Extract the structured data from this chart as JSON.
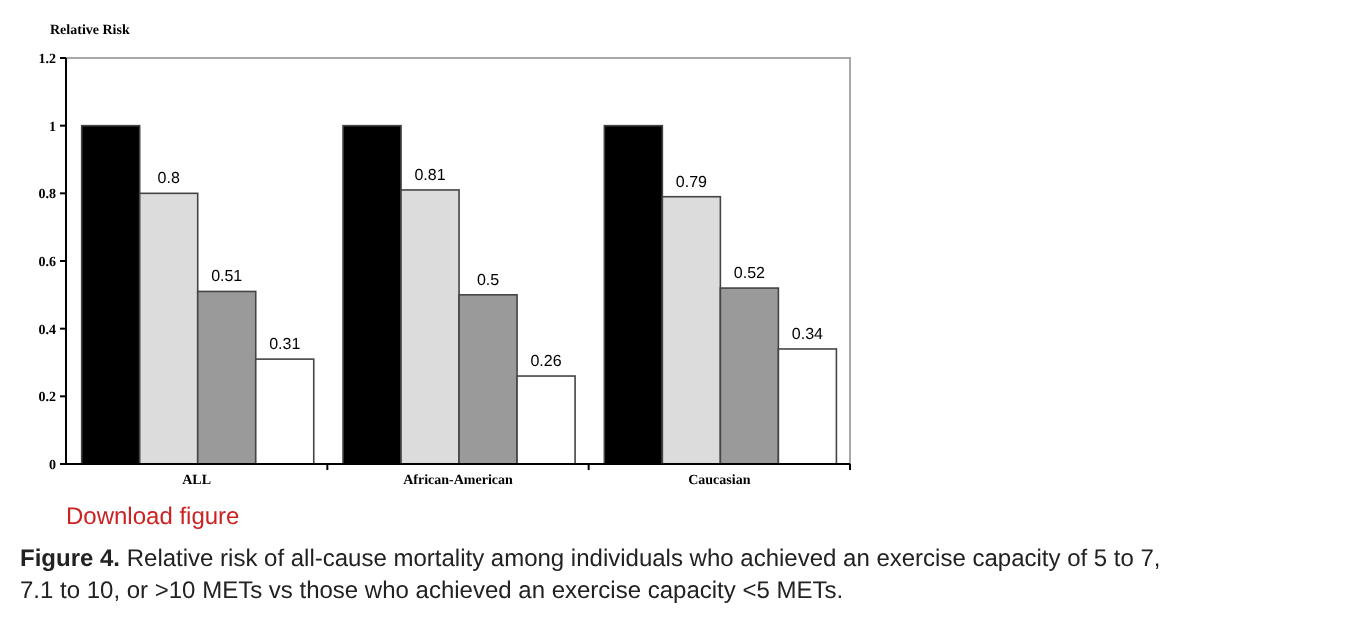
{
  "chart_data": {
    "type": "bar",
    "ylabel": "Relative Risk",
    "categories": [
      "ALL",
      "African-American",
      "Caucasian"
    ],
    "series": [
      {
        "color": "#000000",
        "values": [
          1,
          1,
          1
        ],
        "value_labels": [
          null,
          null,
          null
        ]
      },
      {
        "color": "#dcdcdc",
        "values": [
          0.8,
          0.81,
          0.79
        ],
        "value_labels": [
          "0.8",
          "0.81",
          "0.79"
        ]
      },
      {
        "color": "#9a9a9a",
        "values": [
          0.51,
          0.5,
          0.52
        ],
        "value_labels": [
          "0.51",
          "0.5",
          "0.52"
        ]
      },
      {
        "color": "#ffffff",
        "values": [
          0.31,
          0.26,
          0.34
        ],
        "value_labels": [
          "0.31",
          "0.26",
          "0.34"
        ]
      }
    ],
    "ylim": [
      0,
      1.2
    ],
    "yticks": [
      0,
      0.2,
      0.4,
      0.6,
      0.8,
      1,
      1.2
    ],
    "grid": false,
    "annotations": [
      "Download figure",
      "Figure 4. Relative risk of all-cause mortality among individuals who achieved an exercise capacity of 5 to 7, 7.1 to 10, or >10 METs vs those who achieved an exercise capacity <5 METs."
    ]
  }
}
